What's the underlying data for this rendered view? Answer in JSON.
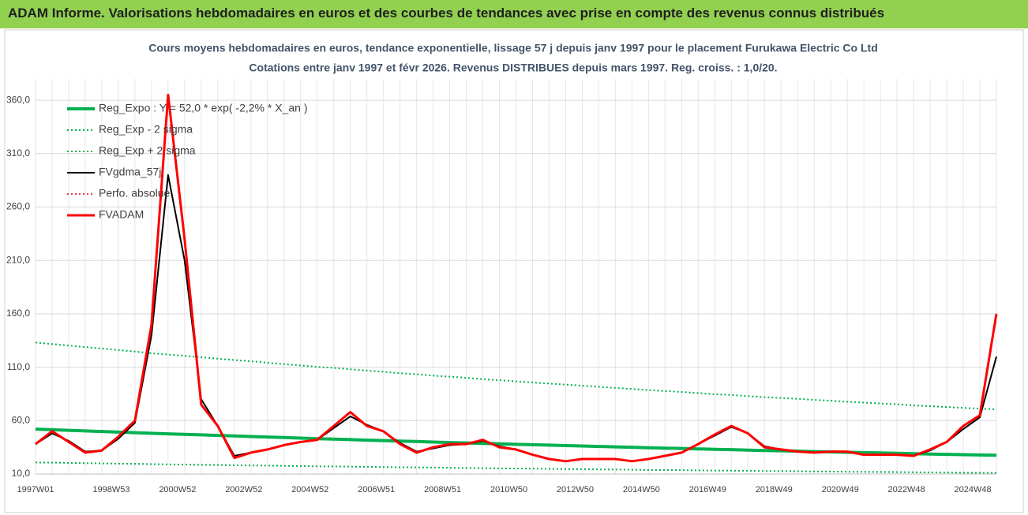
{
  "chart_data": {
    "type": "line",
    "title": "ADAM Informe. Valorisations hebdomadaires en euros et des courbes de tendances avec prise en compte des revenus connus distribués",
    "subtitle": [
      "Cours moyens hebdomadaires en euros, tendance exponentielle, lissage 57 j depuis janv 1997 pour le placement Furukawa Electric Co Ltd",
      "Cotations entre janv 1997 et févr 2026. Revenus DISTRIBUES depuis mars 1997. Reg. croiss. : 1,0/20."
    ],
    "categories": [
      "1997W01",
      null,
      null,
      null,
      "1998W53",
      null,
      null,
      null,
      "2000W52",
      null,
      null,
      null,
      "2002W52",
      null,
      null,
      null,
      "2004W52",
      null,
      null,
      null,
      "2006W51",
      null,
      null,
      null,
      "2008W51",
      null,
      null,
      null,
      "2010W50",
      null,
      null,
      null,
      "2012W50",
      null,
      null,
      null,
      "2014W50",
      null,
      null,
      null,
      "2016W49",
      null,
      null,
      null,
      "2018W49",
      null,
      null,
      null,
      "2020W49",
      null,
      null,
      null,
      "2022W48",
      null,
      null,
      null,
      "2024W48",
      null,
      null
    ],
    "ylim": [
      10,
      380
    ],
    "yticks": [
      {
        "value": 10,
        "label": "10,0"
      },
      {
        "value": 60,
        "label": "60,0"
      },
      {
        "value": 110,
        "label": "110,0"
      },
      {
        "value": 160,
        "label": "160,0"
      },
      {
        "value": 210,
        "label": "210,0"
      },
      {
        "value": 260,
        "label": "260,0"
      },
      {
        "value": 310,
        "label": "310,0"
      },
      {
        "value": 360,
        "label": "360,0"
      }
    ],
    "grid": true,
    "legend": "top-left",
    "series": [
      {
        "name": "Reg_Expo : Y = 52,0 * exp( -2,2% *  X_an )",
        "color": "#00b050",
        "width": 4,
        "dotted": false,
        "values": [
          52.0,
          51.4,
          50.9,
          50.3,
          49.8,
          49.2,
          48.7,
          48.1,
          47.6,
          47.1,
          46.6,
          46.1,
          45.6,
          45.1,
          44.6,
          44.1,
          43.6,
          43.1,
          42.7,
          42.2,
          41.7,
          41.3,
          40.8,
          40.4,
          39.9,
          39.5,
          39.1,
          38.6,
          38.2,
          37.8,
          37.4,
          37.0,
          36.6,
          36.2,
          35.8,
          35.4,
          35.0,
          34.6,
          34.2,
          33.9,
          33.5,
          33.1,
          32.8,
          32.4,
          32.0,
          31.7,
          31.4,
          31.0,
          30.7,
          30.3,
          30.0,
          29.7,
          29.4,
          29.0,
          28.7,
          28.4,
          28.1,
          27.8,
          27.5
        ]
      },
      {
        "name": "Reg_Exp - 2 sigma",
        "color": "#00b050",
        "width": 2,
        "dotted": true,
        "values": [
          20.8,
          20.6,
          20.4,
          20.1,
          19.9,
          19.7,
          19.5,
          19.2,
          19.0,
          18.8,
          18.6,
          18.4,
          18.2,
          18.0,
          17.8,
          17.6,
          17.4,
          17.2,
          17.1,
          16.9,
          16.7,
          16.5,
          16.3,
          16.2,
          16.0,
          15.8,
          15.6,
          15.4,
          15.3,
          15.1,
          15.0,
          14.8,
          14.6,
          14.5,
          14.3,
          14.2,
          14.0,
          13.8,
          13.7,
          13.6,
          13.4,
          13.2,
          13.1,
          13.0,
          12.8,
          12.7,
          12.6,
          12.4,
          12.3,
          12.1,
          12.0,
          11.9,
          11.8,
          11.6,
          11.5,
          11.4,
          11.2,
          11.1,
          11.0
        ]
      },
      {
        "name": "Reg_Exp + 2 sigma",
        "color": "#00b050",
        "width": 2,
        "dotted": true,
        "values": [
          133.1,
          131.6,
          130.3,
          128.8,
          127.5,
          126.0,
          124.7,
          123.1,
          121.9,
          120.6,
          119.3,
          118.0,
          116.7,
          115.5,
          114.2,
          112.9,
          111.6,
          110.3,
          109.3,
          108.0,
          106.8,
          105.7,
          104.4,
          103.4,
          102.1,
          101.1,
          100.1,
          98.8,
          97.8,
          96.8,
          95.7,
          94.7,
          93.7,
          92.7,
          91.6,
          90.6,
          89.6,
          88.6,
          87.6,
          86.8,
          85.8,
          84.7,
          84.0,
          82.9,
          81.9,
          81.2,
          80.4,
          79.4,
          78.6,
          77.6,
          76.8,
          76.0,
          75.3,
          74.2,
          73.5,
          72.7,
          71.9,
          71.2,
          70.4
        ]
      },
      {
        "name": "FVgdma_57j",
        "color": "#000000",
        "width": 2,
        "dotted": false,
        "values": [
          38,
          48,
          41,
          31,
          32,
          43,
          58,
          140,
          290,
          210,
          80,
          55,
          27,
          30,
          33,
          37,
          40,
          42,
          53,
          64,
          56,
          50,
          39,
          31,
          34,
          37,
          38,
          41,
          36,
          33,
          28,
          24,
          22,
          24,
          24,
          24,
          22,
          24,
          27,
          30,
          38,
          46,
          54,
          48,
          36,
          33,
          31,
          30,
          31,
          31,
          28,
          28,
          28,
          27,
          32,
          40,
          52,
          63,
          120
        ]
      },
      {
        "name": "Perfo. absolue",
        "color": "#e00000",
        "width": 1.5,
        "dotted": true,
        "values": [
          38,
          50,
          40,
          30,
          32,
          45,
          60,
          150,
          365,
          230,
          75,
          55,
          25,
          30,
          33,
          37,
          40,
          42,
          55,
          68,
          55,
          50,
          38,
          30,
          35,
          38,
          38,
          42,
          35,
          33,
          28,
          24,
          22,
          24,
          24,
          24,
          22,
          24,
          27,
          30,
          38,
          47,
          55,
          48,
          35,
          33,
          31,
          30,
          31,
          31,
          28,
          28,
          28,
          27,
          33,
          40,
          55,
          65,
          160
        ]
      },
      {
        "name": "FVADAM",
        "color": "#ff0000",
        "width": 3,
        "dotted": false,
        "values": [
          38,
          50,
          40,
          30,
          32,
          45,
          60,
          150,
          365,
          230,
          75,
          55,
          25,
          30,
          33,
          37,
          40,
          42,
          55,
          68,
          55,
          50,
          38,
          30,
          35,
          38,
          38,
          42,
          35,
          33,
          28,
          24,
          22,
          24,
          24,
          24,
          22,
          24,
          27,
          30,
          38,
          47,
          55,
          48,
          35,
          33,
          31,
          30,
          31,
          31,
          28,
          28,
          28,
          27,
          33,
          40,
          55,
          65,
          160
        ]
      }
    ]
  }
}
